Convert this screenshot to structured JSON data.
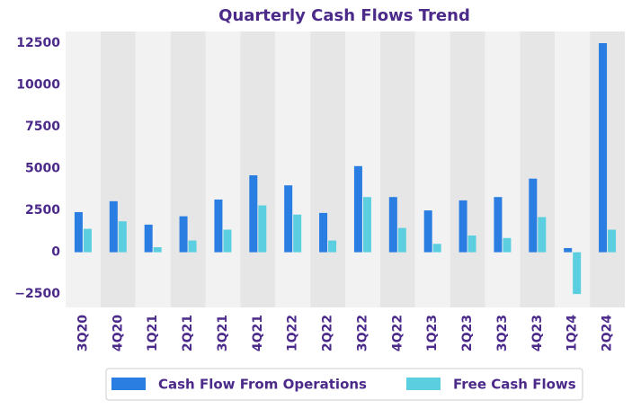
{
  "chart_data": {
    "type": "bar",
    "title": "Quarterly Cash Flows Trend",
    "categories": [
      "3Q20",
      "4Q20",
      "1Q21",
      "2Q21",
      "3Q21",
      "4Q21",
      "1Q22",
      "2Q22",
      "3Q22",
      "4Q22",
      "1Q23",
      "2Q23",
      "3Q23",
      "4Q23",
      "1Q24",
      "2Q24"
    ],
    "series": [
      {
        "name": "Cash Flow From Operations",
        "color": "#2a7de1",
        "values": [
          2400,
          3050,
          1650,
          2150,
          3150,
          4600,
          4000,
          2350,
          5150,
          3300,
          2500,
          3100,
          3300,
          4400,
          250,
          12500
        ]
      },
      {
        "name": "Free Cash Flows",
        "color": "#5bcfe0",
        "values": [
          1400,
          1850,
          300,
          700,
          1350,
          2800,
          2250,
          700,
          3300,
          1450,
          500,
          1000,
          850,
          2100,
          -2500,
          1350
        ]
      }
    ],
    "ylim": [
      -3300,
      13200
    ],
    "yticks": [
      {
        "value": -2500,
        "label": "−2500"
      },
      0,
      2500,
      5000,
      7500,
      10000,
      12500
    ],
    "legend": "bottom"
  }
}
